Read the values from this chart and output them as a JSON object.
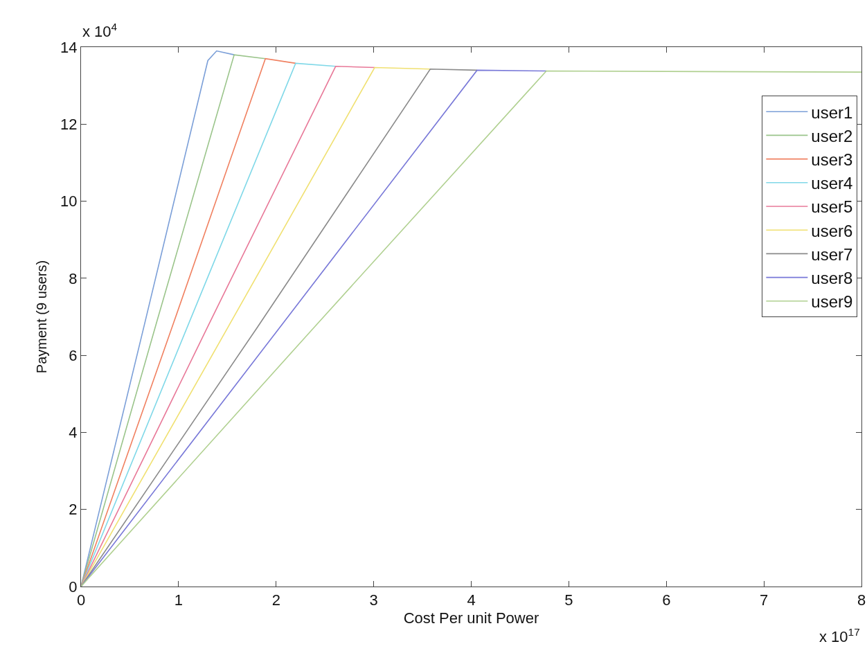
{
  "chart_data": {
    "type": "line",
    "xlabel": "Cost Per unit Power",
    "ylabel": "Payment (9 users)",
    "annotations": [
      "x 10$^{4}$",
      "x 10$^{17}$"
    ],
    "xlim": [
      0,
      8
    ],
    "xticks": [
      0,
      1,
      2,
      3,
      4,
      5,
      6,
      7,
      8
    ],
    "ylim": [
      0,
      14
    ],
    "yticks": [
      0,
      2,
      4,
      6,
      8,
      10,
      12,
      14
    ],
    "grid": false,
    "legend": "top right",
    "line_style": "solid",
    "series": [
      {
        "name": "user1",
        "color": "#7b9fd8",
        "x": [
          0,
          0.65,
          1.3,
          1.39,
          1.57
        ],
        "values": [
          0,
          6.8,
          13.65,
          13.9,
          13.8
        ]
      },
      {
        "name": "user2",
        "color": "#9ac48a",
        "x": [
          0,
          0.78,
          1.57,
          1.89
        ],
        "values": [
          0,
          6.9,
          13.8,
          13.7
        ]
      },
      {
        "name": "user3",
        "color": "#f08060",
        "x": [
          0,
          0.95,
          1.89,
          2.2
        ],
        "values": [
          0,
          6.85,
          13.7,
          13.58
        ]
      },
      {
        "name": "user4",
        "color": "#7fd8e8",
        "x": [
          0,
          1.1,
          2.2,
          2.61
        ],
        "values": [
          0,
          6.8,
          13.58,
          13.5
        ]
      },
      {
        "name": "user5",
        "color": "#e87898",
        "x": [
          0,
          1.3,
          2.61,
          3.01
        ],
        "values": [
          0,
          6.75,
          13.5,
          13.47
        ]
      },
      {
        "name": "user6",
        "color": "#f0e070",
        "x": [
          0,
          1.5,
          3.01,
          3.58
        ],
        "values": [
          0,
          6.7,
          13.47,
          13.43
        ]
      },
      {
        "name": "user7",
        "color": "#8a8a8a",
        "x": [
          0,
          1.8,
          3.58,
          4.06
        ],
        "values": [
          0,
          6.7,
          13.43,
          13.4
        ]
      },
      {
        "name": "user8",
        "color": "#7878d8",
        "x": [
          0,
          2.03,
          4.06,
          4.77
        ],
        "values": [
          0,
          6.7,
          13.4,
          13.38
        ]
      },
      {
        "name": "user9",
        "color": "#b0d090",
        "x": [
          0,
          2.38,
          4.77,
          8
        ],
        "values": [
          0,
          6.7,
          13.38,
          13.35
        ]
      }
    ]
  }
}
